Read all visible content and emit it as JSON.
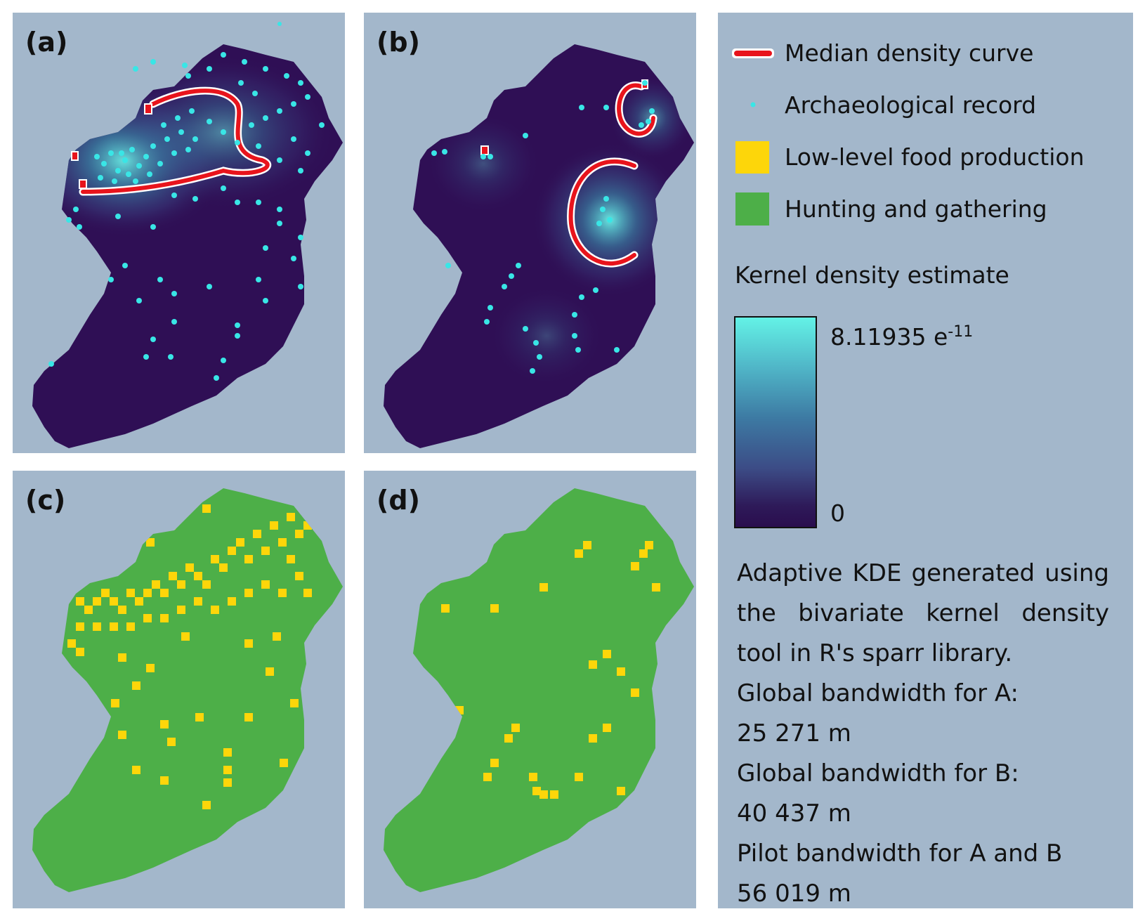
{
  "panels": {
    "a": {
      "label": "(a)"
    },
    "b": {
      "label": "(b)"
    },
    "c": {
      "label": "(c)"
    },
    "d": {
      "label": "(d)"
    }
  },
  "legend": {
    "median_curve": "Median density curve",
    "archaeological": "Archaeological record",
    "low_level": "Low-level food production",
    "hunting": "Hunting and gathering",
    "kde_title": "Kernel density estimate",
    "kde_max": "8.11935 e",
    "kde_max_exp": "-11",
    "kde_min": "0"
  },
  "description": {
    "line1": "Adaptive KDE generated using",
    "line2": "the bivariate kernel density",
    "line3": "tool in R's sparr library.",
    "line4": "Global bandwidth for A:",
    "line5": "25 271 m",
    "line6": "Global bandwidth for B:",
    "line7": "40 437 m",
    "line8": "Pilot bandwidth for A and B",
    "line9": "56 019 m"
  },
  "colors": {
    "background": "#a3b7cb",
    "land_dark": "#2f0f55",
    "kde_high": "#63f2e6",
    "median_curve": "#e8141c",
    "points": "#39e6e6",
    "low_level_food": "#fdd60a",
    "hunting": "#4daf48"
  }
}
